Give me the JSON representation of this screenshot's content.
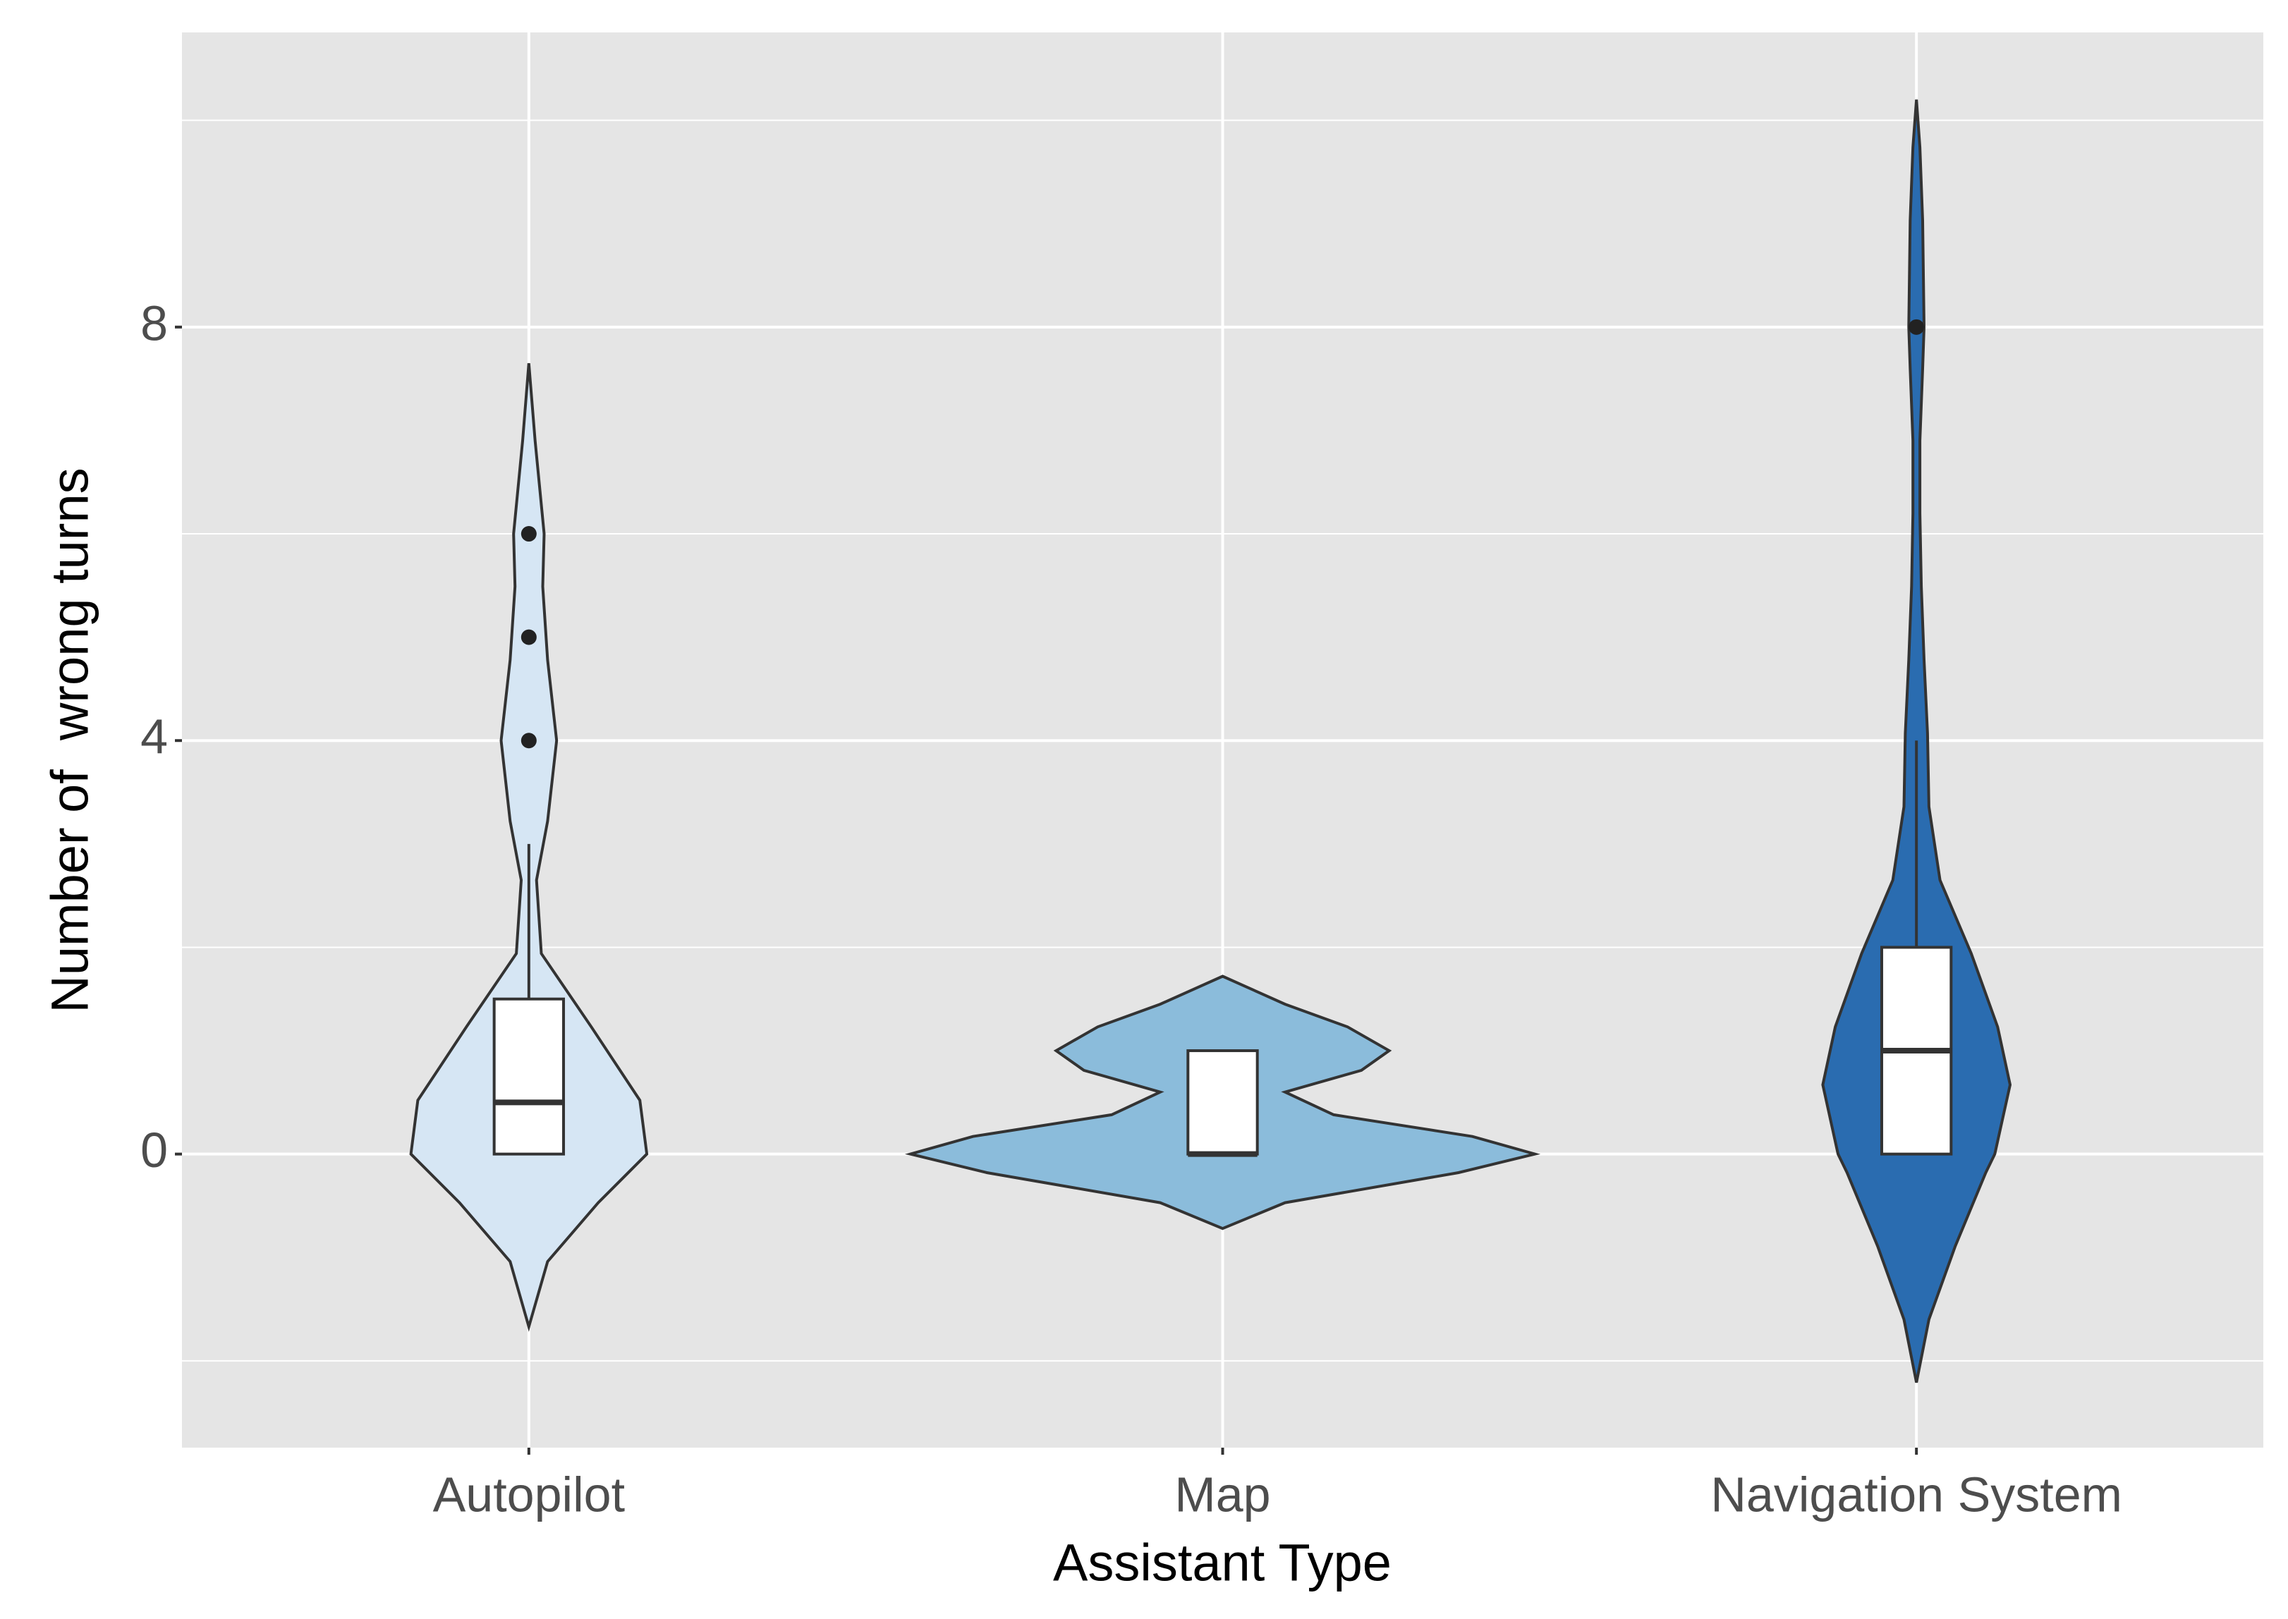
{
  "chart_data": {
    "type": "violin",
    "x_label": "Assistant Type",
    "y_label": "Number of  wrong turns",
    "categories": [
      "Autopilot",
      "Map",
      "Navigation System"
    ],
    "ylim": [
      -2.84,
      10.85
    ],
    "yticks": [
      0,
      4,
      8
    ],
    "yminor": [
      -2,
      2,
      6,
      10
    ],
    "grid": true,
    "violins": [
      {
        "color": "#d6e6f4",
        "violin": {
          "y": [
            -1.67,
            -1.04,
            -0.47,
            0,
            0.52,
            1.23,
            1.94,
            2.65,
            3.22,
            4.0,
            4.78,
            5.49,
            6.0,
            6.9,
            7.65
          ],
          "width": [
            0,
            0.027,
            0.1,
            0.17,
            0.16,
            0.09,
            0.018,
            0.011,
            0.027,
            0.04,
            0.027,
            0.02,
            0.022,
            0.009,
            0
          ]
        },
        "box": {
          "low": 0,
          "q1": 0,
          "median": 0.5,
          "q3": 1.5,
          "high": 3
        },
        "outliers": [
          4,
          5,
          6
        ]
      },
      {
        "color": "#8bbcdb",
        "violin": {
          "y": [
            -0.72,
            -0.47,
            -0.18,
            0,
            0.17,
            0.38,
            0.6,
            0.81,
            1.0,
            1.23,
            1.45,
            1.72
          ],
          "width": [
            0,
            0.09,
            0.34,
            0.45,
            0.36,
            0.16,
            0.09,
            0.2,
            0.24,
            0.18,
            0.09,
            0
          ]
        },
        "box": {
          "low": 0,
          "q1": 0,
          "median": 0,
          "q3": 1,
          "high": 1
        },
        "outliers": []
      },
      {
        "color": "#2a6cb0",
        "violin": {
          "y": [
            -2.21,
            -1.6,
            -0.89,
            -0.18,
            0,
            0.67,
            1.23,
            1.94,
            2.65,
            3.36,
            4.07,
            4.78,
            5.49,
            6.2,
            6.9,
            7.6,
            8.0,
            9.03,
            9.74,
            10.2
          ],
          "width": [
            0,
            0.018,
            0.056,
            0.1,
            0.113,
            0.135,
            0.117,
            0.079,
            0.034,
            0.018,
            0.016,
            0.011,
            0.007,
            0.005,
            0.005,
            0.009,
            0.011,
            0.009,
            0.005,
            0
          ]
        },
        "box": {
          "low": 0,
          "q1": 0,
          "median": 1,
          "q3": 2,
          "high": 4
        },
        "outliers": [
          8
        ]
      }
    ]
  }
}
